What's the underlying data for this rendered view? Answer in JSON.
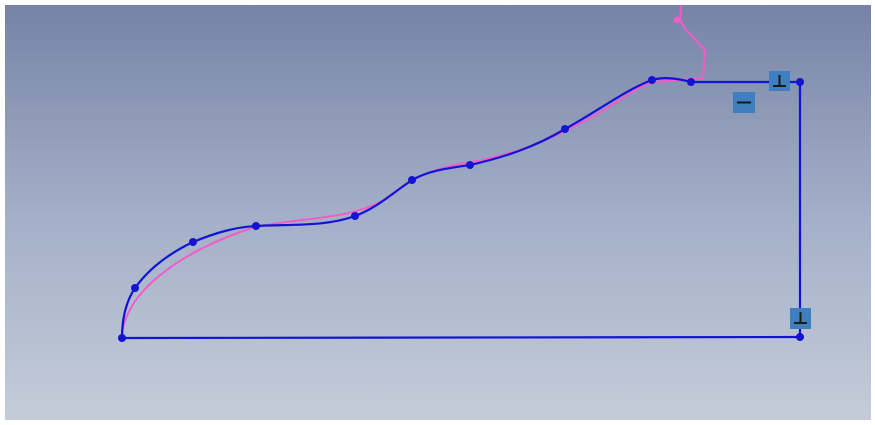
{
  "viewport": {
    "background_top": "#7683a6",
    "background_bottom": "#c4ccd9"
  },
  "sketch": {
    "line_color": "#1313d6",
    "reference_color": "#f25cc8",
    "point_color": "#1313d6",
    "badge_color": "#3d7fbf",
    "badge_symbol_color": "#1a1a1a"
  },
  "constraints": {
    "perpendicular_top": {
      "icon": "perpendicular-icon",
      "symbol": "⊥"
    },
    "horizontal": {
      "icon": "horizontal-icon",
      "symbol": "—"
    },
    "perpendicular_bottom": {
      "icon": "perpendicular-icon",
      "symbol": "⊥"
    }
  }
}
